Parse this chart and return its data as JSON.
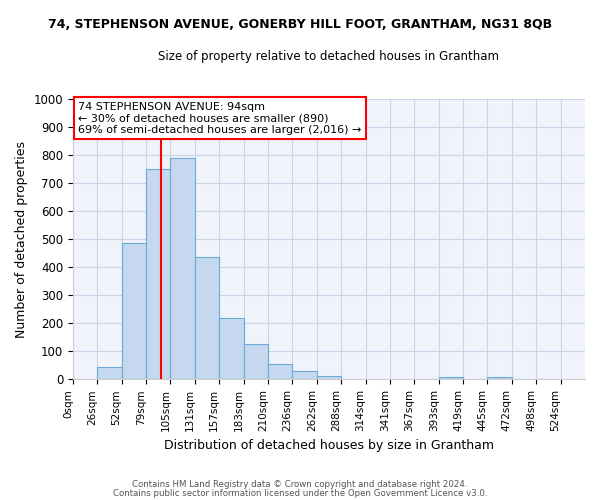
{
  "title_main": "74, STEPHENSON AVENUE, GONERBY HILL FOOT, GRANTHAM, NG31 8QB",
  "title_sub": "Size of property relative to detached houses in Grantham",
  "xlabel": "Distribution of detached houses by size in Grantham",
  "ylabel": "Number of detached properties",
  "bar_labels": [
    "0sqm",
    "26sqm",
    "52sqm",
    "79sqm",
    "105sqm",
    "131sqm",
    "157sqm",
    "183sqm",
    "210sqm",
    "236sqm",
    "262sqm",
    "288sqm",
    "314sqm",
    "341sqm",
    "367sqm",
    "393sqm",
    "419sqm",
    "445sqm",
    "472sqm",
    "498sqm",
    "524sqm"
  ],
  "bar_values": [
    0,
    43,
    485,
    750,
    790,
    435,
    220,
    125,
    53,
    28,
    13,
    0,
    0,
    0,
    0,
    8,
    0,
    10,
    0,
    0,
    0
  ],
  "bar_color": "#c5d8f0",
  "bar_edgecolor": "#6aaad4",
  "property_size_idx": 3.69,
  "annotation_title": "74 STEPHENSON AVENUE: 94sqm",
  "annotation_line1": "← 30% of detached houses are smaller (890)",
  "annotation_line2": "69% of semi-detached houses are larger (2,016) →",
  "annotation_box_edgecolor": "red",
  "vline_color": "red",
  "ylim": [
    0,
    1000
  ],
  "yticks": [
    0,
    100,
    200,
    300,
    400,
    500,
    600,
    700,
    800,
    900,
    1000
  ],
  "footer1": "Contains HM Land Registry data © Crown copyright and database right 2024.",
  "footer2": "Contains public sector information licensed under the Open Government Licence v3.0.",
  "bin_width": 26,
  "plot_bg_color": "#f0f4fa",
  "grid_color": "#c8d4e8"
}
